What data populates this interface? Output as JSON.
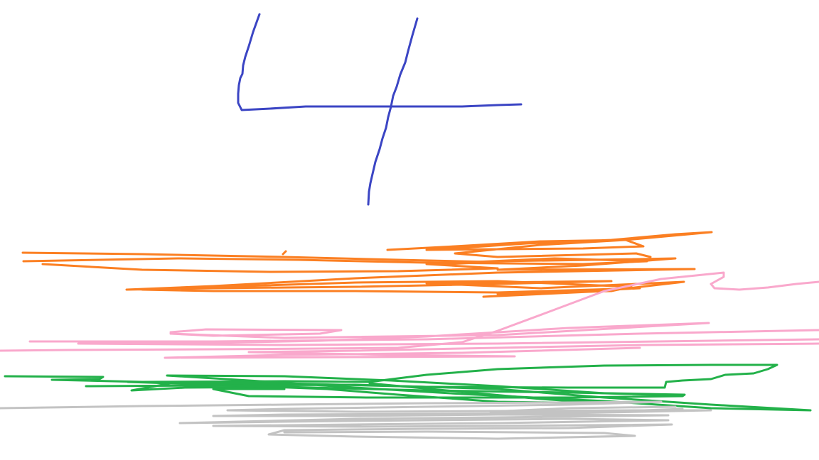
{
  "canvas": {
    "background": "#ffffff"
  },
  "strokes": {
    "digit": {
      "color": "#3b45c4",
      "shape": "handwritten digit four"
    },
    "orange": {
      "color": "#fb7f22"
    },
    "pink": {
      "color": "#f9a8cc"
    },
    "green": {
      "color": "#23b14a"
    },
    "gray": {
      "color": "#c3c3c3"
    }
  }
}
